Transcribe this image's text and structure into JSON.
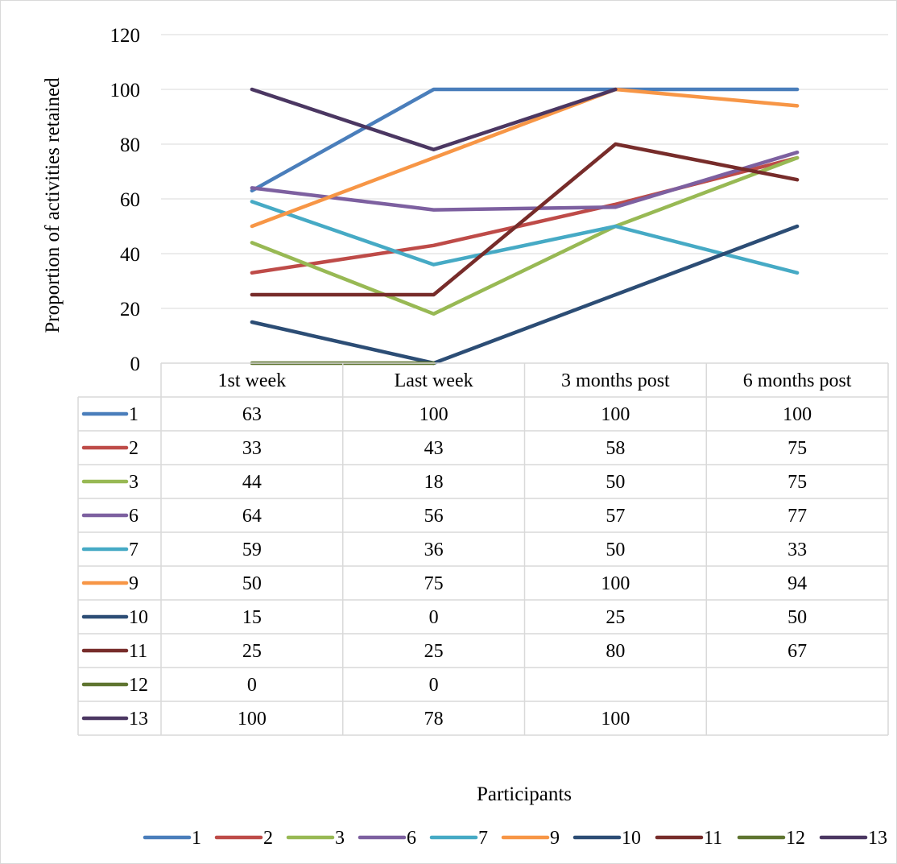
{
  "chart_data": {
    "type": "line",
    "categories": [
      "1st week",
      "Last week",
      "3 months post",
      "6 months post"
    ],
    "xlabel": "Participants",
    "ylabel": "Proportion of activities retained",
    "ylim": [
      0,
      120
    ],
    "yticks": [
      0,
      20,
      40,
      60,
      80,
      100,
      120
    ],
    "grid": true,
    "legend_position": "bottom",
    "data_table": true,
    "series": [
      {
        "name": "1",
        "color": "#4a7ebb",
        "values": [
          63,
          100,
          100,
          100
        ]
      },
      {
        "name": "2",
        "color": "#be4b48",
        "values": [
          33,
          43,
          58,
          75
        ]
      },
      {
        "name": "3",
        "color": "#98b954",
        "values": [
          44,
          18,
          50,
          75
        ]
      },
      {
        "name": "6",
        "color": "#7d60a0",
        "values": [
          64,
          56,
          57,
          77
        ]
      },
      {
        "name": "7",
        "color": "#46aac5",
        "values": [
          59,
          36,
          50,
          33
        ]
      },
      {
        "name": "9",
        "color": "#f79646",
        "values": [
          50,
          75,
          100,
          94
        ]
      },
      {
        "name": "10",
        "color": "#2c4d75",
        "values": [
          15,
          0,
          25,
          50
        ]
      },
      {
        "name": "11",
        "color": "#772c2a",
        "values": [
          25,
          25,
          80,
          67
        ]
      },
      {
        "name": "12",
        "color": "#5f7530",
        "values": [
          0,
          0,
          null,
          null
        ]
      },
      {
        "name": "13",
        "color": "#4b3762",
        "values": [
          100,
          78,
          100,
          null
        ]
      }
    ]
  }
}
